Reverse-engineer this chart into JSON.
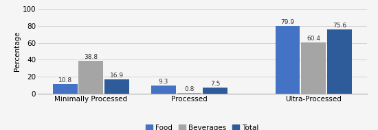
{
  "categories": [
    "Minimally Processed",
    "Processed",
    "Ultra-Processed"
  ],
  "series": {
    "Food": [
      10.8,
      9.3,
      79.9
    ],
    "Beverages": [
      38.8,
      0.8,
      60.4
    ],
    "Total": [
      16.9,
      7.5,
      75.6
    ]
  },
  "colors": {
    "Food": "#4472C4",
    "Beverages": "#A5A5A5",
    "Total": "#2E5B9A"
  },
  "ylabel": "Percentage",
  "ylim": [
    0,
    100
  ],
  "yticks": [
    0,
    20,
    40,
    60,
    80,
    100
  ],
  "bar_width": 0.25,
  "x_positions": [
    0.35,
    1.3,
    2.5
  ],
  "label_fontsize": 6.5,
  "tick_fontsize": 7.5,
  "legend_fontsize": 7.5,
  "background_color": "#f5f5f5"
}
